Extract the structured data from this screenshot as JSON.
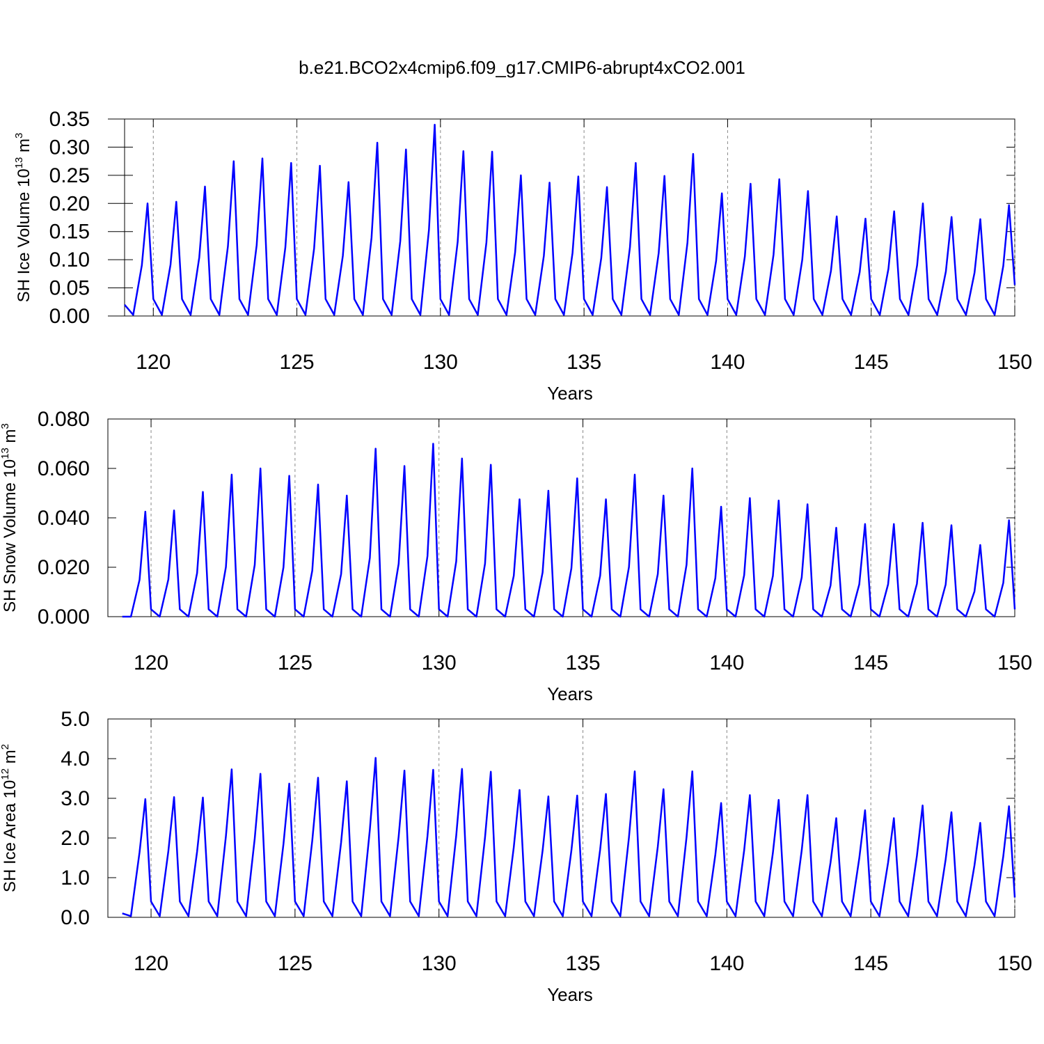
{
  "title": "b.e21.BCO2x4cmip6.f09_g17.CMIP6-abrupt4xCO2.001",
  "chart_data": [
    {
      "type": "line",
      "ylabel": [
        "SH Ice Volume 10",
        "13",
        " m",
        "3"
      ],
      "xlabel": "Years",
      "xlim": [
        119,
        150
      ],
      "xticks": [
        120,
        125,
        130,
        135,
        140,
        145,
        150
      ],
      "ylim": [
        0,
        0.35
      ],
      "yticks": [
        {
          "value": 0,
          "label": "0.00"
        },
        {
          "value": 0.05,
          "label": "0.05"
        },
        {
          "value": 0.1,
          "label": "0.10"
        },
        {
          "value": 0.15,
          "label": "0.15"
        },
        {
          "value": 0.2,
          "label": "0.20"
        },
        {
          "value": 0.25,
          "label": "0.25"
        },
        {
          "value": 0.3,
          "label": "0.30"
        },
        {
          "value": 0.35,
          "label": "0.35"
        }
      ],
      "grid": true,
      "x": [
        119,
        119.3,
        119.6,
        119.8,
        120,
        120.3,
        120.6,
        120.8,
        121,
        121.3,
        121.6,
        121.8,
        122,
        122.3,
        122.6,
        122.8,
        123,
        123.3,
        123.6,
        123.8,
        124,
        124.3,
        124.6,
        124.8,
        125,
        125.3,
        125.6,
        125.8,
        126,
        126.3,
        126.6,
        126.8,
        127,
        127.3,
        127.6,
        127.8,
        128,
        128.3,
        128.6,
        128.8,
        129,
        129.3,
        129.6,
        129.8,
        130,
        130.3,
        130.6,
        130.8,
        131,
        131.3,
        131.6,
        131.8,
        132,
        132.3,
        132.6,
        132.8,
        133,
        133.3,
        133.6,
        133.8,
        134,
        134.3,
        134.6,
        134.8,
        135,
        135.3,
        135.6,
        135.8,
        136,
        136.3,
        136.6,
        136.8,
        137,
        137.3,
        137.6,
        137.8,
        138,
        138.3,
        138.6,
        138.8,
        139,
        139.3,
        139.6,
        139.8,
        140,
        140.3,
        140.6,
        140.8,
        141,
        141.3,
        141.6,
        141.8,
        142,
        142.3,
        142.6,
        142.8,
        143,
        143.3,
        143.6,
        143.8,
        144,
        144.3,
        144.6,
        144.8,
        145,
        145.3,
        145.6,
        145.8,
        146,
        146.3,
        146.6,
        146.8,
        147,
        147.3,
        147.6,
        147.8,
        148,
        148.3,
        148.6,
        148.8,
        149,
        149.3,
        149.6,
        149.8,
        150
      ],
      "series": [
        {
          "color": "#0000ff",
          "values": [
            0.02,
            0.002,
            0.09,
            0.2,
            0.03,
            0.002,
            0.091,
            0.203,
            0.03,
            0.002,
            0.104,
            0.23,
            0.03,
            0.002,
            0.124,
            0.275,
            0.03,
            0.002,
            0.126,
            0.28,
            0.03,
            0.002,
            0.122,
            0.272,
            0.03,
            0.002,
            0.12,
            0.267,
            0.03,
            0.002,
            0.107,
            0.238,
            0.03,
            0.002,
            0.139,
            0.308,
            0.03,
            0.002,
            0.133,
            0.296,
            0.03,
            0.002,
            0.153,
            0.34,
            0.03,
            0.002,
            0.132,
            0.293,
            0.03,
            0.002,
            0.131,
            0.292,
            0.03,
            0.002,
            0.113,
            0.25,
            0.03,
            0.002,
            0.107,
            0.237,
            0.03,
            0.002,
            0.112,
            0.248,
            0.03,
            0.002,
            0.103,
            0.229,
            0.03,
            0.002,
            0.122,
            0.272,
            0.03,
            0.002,
            0.112,
            0.249,
            0.03,
            0.002,
            0.13,
            0.288,
            0.03,
            0.002,
            0.098,
            0.218,
            0.03,
            0.002,
            0.106,
            0.235,
            0.03,
            0.002,
            0.109,
            0.243,
            0.03,
            0.002,
            0.1,
            0.222,
            0.03,
            0.002,
            0.08,
            0.177,
            0.03,
            0.002,
            0.078,
            0.173,
            0.03,
            0.002,
            0.084,
            0.186,
            0.03,
            0.002,
            0.09,
            0.2,
            0.03,
            0.002,
            0.079,
            0.176,
            0.03,
            0.002,
            0.077,
            0.172,
            0.03,
            0.002,
            0.089,
            0.197,
            0.055
          ]
        }
      ]
    },
    {
      "type": "line",
      "ylabel": [
        "SH Snow Volume 10",
        "13",
        " m",
        "3"
      ],
      "xlabel": "Years",
      "xlim": [
        118.5,
        150
      ],
      "xticks": [
        120,
        125,
        130,
        135,
        140,
        145,
        150
      ],
      "ylim": [
        0,
        0.08
      ],
      "yticks": [
        {
          "value": 0,
          "label": "0.000"
        },
        {
          "value": 0.02,
          "label": "0.020"
        },
        {
          "value": 0.04,
          "label": "0.040"
        },
        {
          "value": 0.06,
          "label": "0.060"
        },
        {
          "value": 0.08,
          "label": "0.080"
        }
      ],
      "grid": true,
      "x": [
        119,
        119.3,
        119.6,
        119.8,
        120,
        120.3,
        120.6,
        120.8,
        121,
        121.3,
        121.6,
        121.8,
        122,
        122.3,
        122.6,
        122.8,
        123,
        123.3,
        123.6,
        123.8,
        124,
        124.3,
        124.6,
        124.8,
        125,
        125.3,
        125.6,
        125.8,
        126,
        126.3,
        126.6,
        126.8,
        127,
        127.3,
        127.6,
        127.8,
        128,
        128.3,
        128.6,
        128.8,
        129,
        129.3,
        129.6,
        129.8,
        130,
        130.3,
        130.6,
        130.8,
        131,
        131.3,
        131.6,
        131.8,
        132,
        132.3,
        132.6,
        132.8,
        133,
        133.3,
        133.6,
        133.8,
        134,
        134.3,
        134.6,
        134.8,
        135,
        135.3,
        135.6,
        135.8,
        136,
        136.3,
        136.6,
        136.8,
        137,
        137.3,
        137.6,
        137.8,
        138,
        138.3,
        138.6,
        138.8,
        139,
        139.3,
        139.6,
        139.8,
        140,
        140.3,
        140.6,
        140.8,
        141,
        141.3,
        141.6,
        141.8,
        142,
        142.3,
        142.6,
        142.8,
        143,
        143.3,
        143.6,
        143.8,
        144,
        144.3,
        144.6,
        144.8,
        145,
        145.3,
        145.6,
        145.8,
        146,
        146.3,
        146.6,
        146.8,
        147,
        147.3,
        147.6,
        147.8,
        148,
        148.3,
        148.6,
        148.8,
        149,
        149.3,
        149.6,
        149.8,
        150
      ],
      "series": [
        {
          "color": "#0000ff",
          "values": [
            0,
            0,
            0.0149,
            0.0425,
            0.003,
            0,
            0.0151,
            0.043,
            0.003,
            0,
            0.0177,
            0.0505,
            0.003,
            0,
            0.0201,
            0.0575,
            0.003,
            0,
            0.021,
            0.06,
            0.003,
            0,
            0.02,
            0.057,
            0.003,
            0,
            0.0187,
            0.0535,
            0.003,
            0,
            0.0172,
            0.049,
            0.003,
            0,
            0.0238,
            0.068,
            0.003,
            0,
            0.0214,
            0.061,
            0.003,
            0,
            0.0245,
            0.07,
            0.003,
            0,
            0.0224,
            0.064,
            0.003,
            0,
            0.0215,
            0.0615,
            0.003,
            0,
            0.0166,
            0.0475,
            0.003,
            0,
            0.0179,
            0.051,
            0.003,
            0,
            0.0196,
            0.056,
            0.003,
            0,
            0.0166,
            0.0475,
            0.003,
            0,
            0.0201,
            0.0575,
            0.003,
            0,
            0.0172,
            0.049,
            0.003,
            0,
            0.021,
            0.06,
            0.003,
            0,
            0.0156,
            0.0445,
            0.003,
            0,
            0.0168,
            0.048,
            0.003,
            0,
            0.0165,
            0.047,
            0.003,
            0,
            0.0159,
            0.0455,
            0.003,
            0,
            0.0126,
            0.036,
            0.003,
            0,
            0.0131,
            0.0375,
            0.003,
            0,
            0.0131,
            0.0375,
            0.003,
            0,
            0.0133,
            0.038,
            0.003,
            0,
            0.013,
            0.037,
            0.003,
            0,
            0.0102,
            0.029,
            0.003,
            0,
            0.0137,
            0.039,
            0.003
          ]
        }
      ]
    },
    {
      "type": "line",
      "ylabel": [
        "SH Ice Area 10",
        "12",
        " m",
        "2"
      ],
      "xlabel": "Years",
      "xlim": [
        118.5,
        150
      ],
      "xticks": [
        120,
        125,
        130,
        135,
        140,
        145,
        150
      ],
      "ylim": [
        0,
        5
      ],
      "yticks": [
        {
          "value": 0,
          "label": "0.0"
        },
        {
          "value": 1,
          "label": "1.0"
        },
        {
          "value": 2,
          "label": "2.0"
        },
        {
          "value": 3,
          "label": "3.0"
        },
        {
          "value": 4,
          "label": "4.0"
        },
        {
          "value": 5,
          "label": "5.0"
        }
      ],
      "grid": true,
      "x": [
        119,
        119.3,
        119.6,
        119.8,
        120,
        120.3,
        120.6,
        120.8,
        121,
        121.3,
        121.6,
        121.8,
        122,
        122.3,
        122.6,
        122.8,
        123,
        123.3,
        123.6,
        123.8,
        124,
        124.3,
        124.6,
        124.8,
        125,
        125.3,
        125.6,
        125.8,
        126,
        126.3,
        126.6,
        126.8,
        127,
        127.3,
        127.6,
        127.8,
        128,
        128.3,
        128.6,
        128.8,
        129,
        129.3,
        129.6,
        129.8,
        130,
        130.3,
        130.6,
        130.8,
        131,
        131.3,
        131.6,
        131.8,
        132,
        132.3,
        132.6,
        132.8,
        133,
        133.3,
        133.6,
        133.8,
        134,
        134.3,
        134.6,
        134.8,
        135,
        135.3,
        135.6,
        135.8,
        136,
        136.3,
        136.6,
        136.8,
        137,
        137.3,
        137.6,
        137.8,
        138,
        138.3,
        138.6,
        138.8,
        139,
        139.3,
        139.6,
        139.8,
        140,
        140.3,
        140.6,
        140.8,
        141,
        141.3,
        141.6,
        141.8,
        142,
        142.3,
        142.6,
        142.8,
        143,
        143.3,
        143.6,
        143.8,
        144,
        144.3,
        144.6,
        144.8,
        145,
        145.3,
        145.6,
        145.8,
        146,
        146.3,
        146.6,
        146.8,
        147,
        147.3,
        147.6,
        147.8,
        148,
        148.3,
        148.6,
        148.8,
        149,
        149.3,
        149.6,
        149.8,
        150
      ],
      "series": [
        {
          "color": "#0000ff",
          "values": [
            0.1,
            0.03,
            1.64,
            2.98,
            0.4,
            0.03,
            1.67,
            3.03,
            0.4,
            0.03,
            1.66,
            3.02,
            0.4,
            0.03,
            2.05,
            3.73,
            0.4,
            0.03,
            1.99,
            3.62,
            0.4,
            0.03,
            1.85,
            3.37,
            0.4,
            0.03,
            1.94,
            3.52,
            0.4,
            0.03,
            1.89,
            3.43,
            0.4,
            0.03,
            2.21,
            4.02,
            0.4,
            0.03,
            2.04,
            3.7,
            0.4,
            0.03,
            2.05,
            3.72,
            0.4,
            0.03,
            2.06,
            3.74,
            0.4,
            0.03,
            2.02,
            3.67,
            0.4,
            0.03,
            1.77,
            3.21,
            0.4,
            0.03,
            1.68,
            3.05,
            0.4,
            0.03,
            1.69,
            3.07,
            0.4,
            0.03,
            1.71,
            3.11,
            0.4,
            0.03,
            2.02,
            3.68,
            0.4,
            0.03,
            1.78,
            3.23,
            0.4,
            0.03,
            2.02,
            3.68,
            0.4,
            0.03,
            1.58,
            2.88,
            0.4,
            0.03,
            1.69,
            3.08,
            0.4,
            0.03,
            1.63,
            2.96,
            0.4,
            0.03,
            1.69,
            3.08,
            0.4,
            0.03,
            1.38,
            2.5,
            0.4,
            0.03,
            1.49,
            2.7,
            0.4,
            0.03,
            1.38,
            2.5,
            0.4,
            0.03,
            1.55,
            2.82,
            0.4,
            0.03,
            1.46,
            2.65,
            0.4,
            0.03,
            1.31,
            2.38,
            0.4,
            0.03,
            1.54,
            2.8,
            0.5
          ]
        }
      ]
    }
  ]
}
